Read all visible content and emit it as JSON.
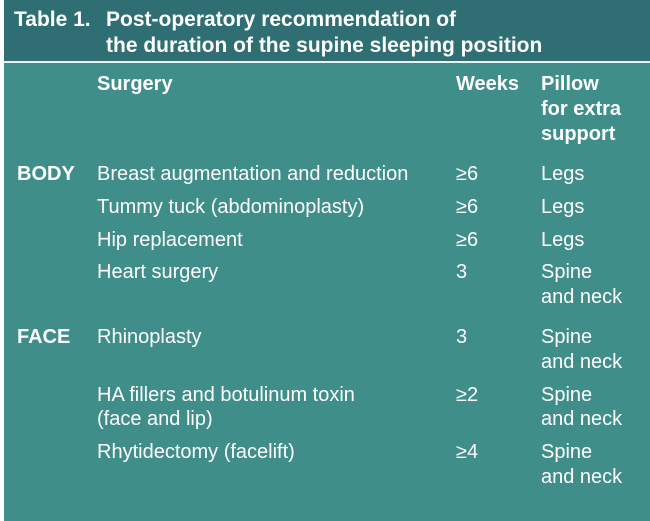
{
  "title": {
    "prefix": "Table 1.",
    "line1": "Post-operatory recommendation of",
    "line2": "the duration of the supine sleeping position"
  },
  "headers": {
    "surgery": "Surgery",
    "weeks": "Weeks",
    "pillow_l1": "Pillow",
    "pillow_l2": "for extra",
    "pillow_l3": "support"
  },
  "groups": {
    "body": "BODY",
    "face": "FACE"
  },
  "rows": [
    {
      "surgery_l1": "Breast augmentation and reduction",
      "surgery_l2": "",
      "weeks": "≥6",
      "pillow_l1": "Legs",
      "pillow_l2": ""
    },
    {
      "surgery_l1": "Tummy tuck (abdominoplasty)",
      "surgery_l2": "",
      "weeks": "≥6",
      "pillow_l1": "Legs",
      "pillow_l2": ""
    },
    {
      "surgery_l1": "Hip replacement",
      "surgery_l2": "",
      "weeks": "≥6",
      "pillow_l1": "Legs",
      "pillow_l2": ""
    },
    {
      "surgery_l1": "Heart surgery",
      "surgery_l2": "",
      "weeks": "3",
      "pillow_l1": "Spine",
      "pillow_l2": "and neck"
    },
    {
      "surgery_l1": "Rhinoplasty",
      "surgery_l2": "",
      "weeks": "3",
      "pillow_l1": "Spine",
      "pillow_l2": "and neck"
    },
    {
      "surgery_l1": "HA fillers and botulinum toxin",
      "surgery_l2": "(face and lip)",
      "weeks": "≥2",
      "pillow_l1": "Spine",
      "pillow_l2": "and neck"
    },
    {
      "surgery_l1": "Rhytidectomy (facelift)",
      "surgery_l2": "",
      "weeks": "≥4",
      "pillow_l1": "Spine",
      "pillow_l2": "and neck"
    }
  ],
  "colors": {
    "title_bg": "#2f6f73",
    "table_bg": "#3f8e8a",
    "text": "#ffffff"
  }
}
